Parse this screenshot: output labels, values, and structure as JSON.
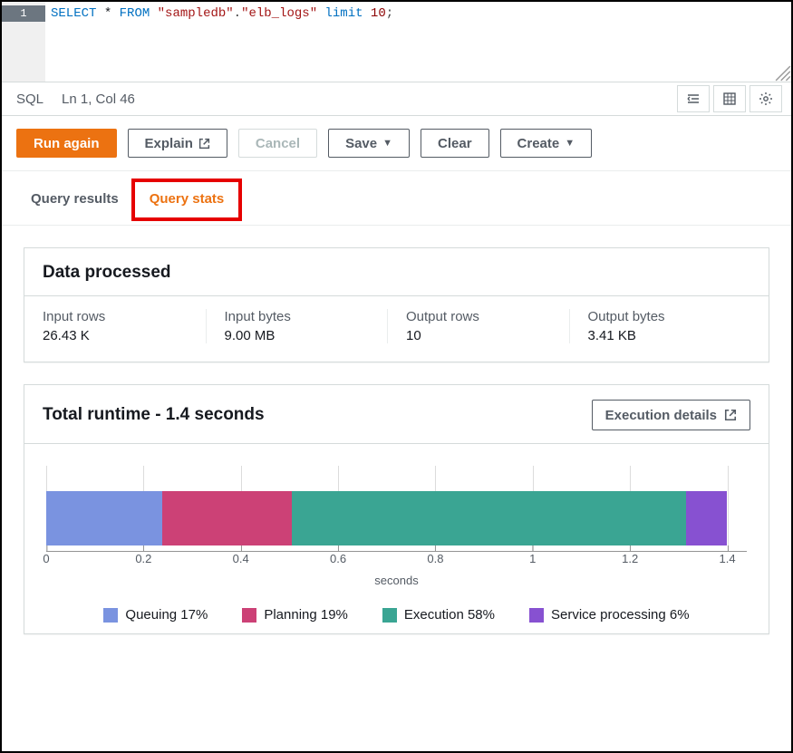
{
  "editor": {
    "line_number": "1",
    "sql": {
      "kw1": "SELECT",
      "star": " * ",
      "kw2": "FROM",
      "sp1": " ",
      "str1": "\"sampledb\"",
      "dot": ".",
      "str2": "\"elb_logs\"",
      "sp2": " ",
      "kw3": "limit",
      "sp3": " ",
      "num": "10",
      "semi": ";"
    }
  },
  "status": {
    "lang": "SQL",
    "cursor": "Ln 1, Col 46"
  },
  "toolbar": {
    "run": "Run again",
    "explain": "Explain",
    "cancel": "Cancel",
    "save": "Save",
    "clear": "Clear",
    "create": "Create"
  },
  "tabs": {
    "results": "Query results",
    "stats": "Query stats"
  },
  "data_panel": {
    "title": "Data processed",
    "stats": [
      {
        "label": "Input rows",
        "value": "26.43 K"
      },
      {
        "label": "Input bytes",
        "value": "9.00 MB"
      },
      {
        "label": "Output rows",
        "value": "10"
      },
      {
        "label": "Output bytes",
        "value": "3.41 KB"
      }
    ]
  },
  "runtime_panel": {
    "title": "Total runtime - 1.4 seconds",
    "exec_details": "Execution details",
    "chart": {
      "type": "stacked-bar-horizontal",
      "xlabel": "seconds",
      "xlim": [
        0,
        1.44
      ],
      "ticks": [
        0,
        0.2,
        0.4,
        0.6,
        0.8,
        1,
        1.2,
        1.4
      ],
      "segments": [
        {
          "name": "Queuing",
          "pct": 17,
          "value": 0.238,
          "color": "#7a93e0"
        },
        {
          "name": "Planning",
          "pct": 19,
          "value": 0.266,
          "color": "#cc4176"
        },
        {
          "name": "Execution",
          "pct": 58,
          "value": 0.812,
          "color": "#3aa593"
        },
        {
          "name": "Service processing",
          "pct": 6,
          "value": 0.084,
          "color": "#8751d1"
        }
      ],
      "background_color": "#ffffff",
      "axis_color": "#949494",
      "grid_color": "#dcdcdc",
      "label_fontsize": 13,
      "legend_fontsize": 15
    }
  },
  "colors": {
    "primary": "#ec7211",
    "highlight_border": "#e60000"
  }
}
